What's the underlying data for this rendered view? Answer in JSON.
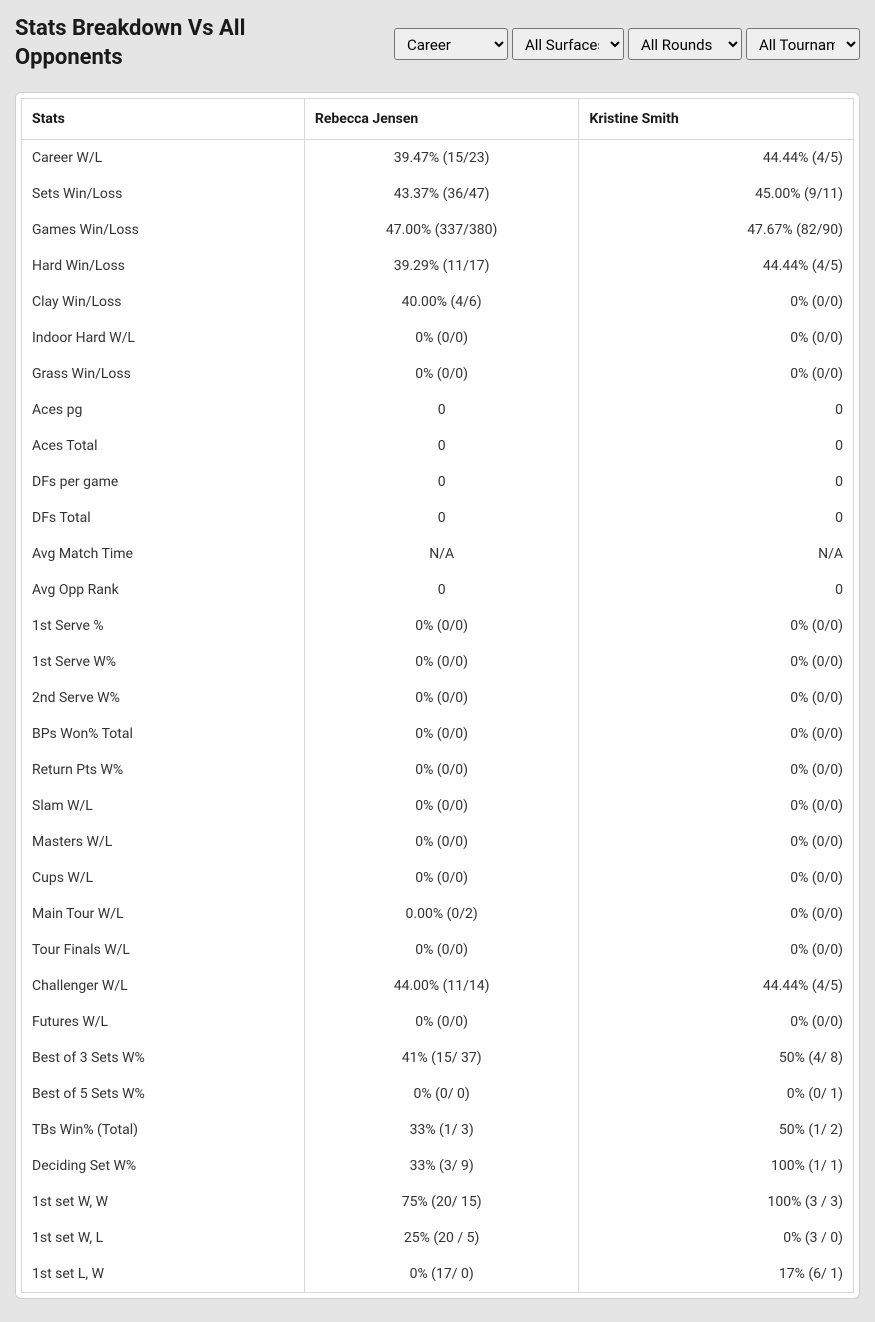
{
  "header": {
    "title": "Stats Breakdown Vs All Opponents",
    "dropdowns": [
      {
        "selected": "Career"
      },
      {
        "selected": "All Surfaces"
      },
      {
        "selected": "All Rounds"
      },
      {
        "selected": "All Tournaments"
      }
    ]
  },
  "table": {
    "columns": [
      "Stats",
      "Rebecca Jensen",
      "Kristine Smith"
    ],
    "rows": [
      [
        "Career W/L",
        "39.47% (15/23)",
        "44.44% (4/5)"
      ],
      [
        "Sets Win/Loss",
        "43.37% (36/47)",
        "45.00% (9/11)"
      ],
      [
        "Games Win/Loss",
        "47.00% (337/380)",
        "47.67% (82/90)"
      ],
      [
        "Hard Win/Loss",
        "39.29% (11/17)",
        "44.44% (4/5)"
      ],
      [
        "Clay Win/Loss",
        "40.00% (4/6)",
        "0% (0/0)"
      ],
      [
        "Indoor Hard W/L",
        "0% (0/0)",
        "0% (0/0)"
      ],
      [
        "Grass Win/Loss",
        "0% (0/0)",
        "0% (0/0)"
      ],
      [
        "Aces pg",
        "0",
        "0"
      ],
      [
        "Aces Total",
        "0",
        "0"
      ],
      [
        "DFs per game",
        "0",
        "0"
      ],
      [
        "DFs Total",
        "0",
        "0"
      ],
      [
        "Avg Match Time",
        "N/A",
        "N/A"
      ],
      [
        "Avg Opp Rank",
        "0",
        "0"
      ],
      [
        "1st Serve %",
        "0% (0/0)",
        "0% (0/0)"
      ],
      [
        "1st Serve W%",
        "0% (0/0)",
        "0% (0/0)"
      ],
      [
        "2nd Serve W%",
        "0% (0/0)",
        "0% (0/0)"
      ],
      [
        "BPs Won% Total",
        "0% (0/0)",
        "0% (0/0)"
      ],
      [
        "Return Pts W%",
        "0% (0/0)",
        "0% (0/0)"
      ],
      [
        "Slam W/L",
        "0% (0/0)",
        "0% (0/0)"
      ],
      [
        "Masters W/L",
        "0% (0/0)",
        "0% (0/0)"
      ],
      [
        "Cups W/L",
        "0% (0/0)",
        "0% (0/0)"
      ],
      [
        "Main Tour W/L",
        "0.00% (0/2)",
        "0% (0/0)"
      ],
      [
        "Tour Finals W/L",
        "0% (0/0)",
        "0% (0/0)"
      ],
      [
        "Challenger W/L",
        "44.00% (11/14)",
        "44.44% (4/5)"
      ],
      [
        "Futures W/L",
        "0% (0/0)",
        "0% (0/0)"
      ],
      [
        "Best of 3 Sets W%",
        "41% (15/ 37)",
        "50% (4/ 8)"
      ],
      [
        "Best of 5 Sets W%",
        "0% (0/ 0)",
        "0% (0/ 1)"
      ],
      [
        "TBs Win% (Total)",
        "33% (1/ 3)",
        "50% (1/ 2)"
      ],
      [
        "Deciding Set W%",
        "33% (3/ 9)",
        "100% (1/ 1)"
      ],
      [
        "1st set W, W",
        "75% (20/ 15)",
        "100% (3 / 3)"
      ],
      [
        "1st set W, L",
        "25% (20 / 5)",
        "0% (3 / 0)"
      ],
      [
        "1st set L, W",
        "0% (17/ 0)",
        "17% (6/ 1)"
      ]
    ]
  }
}
